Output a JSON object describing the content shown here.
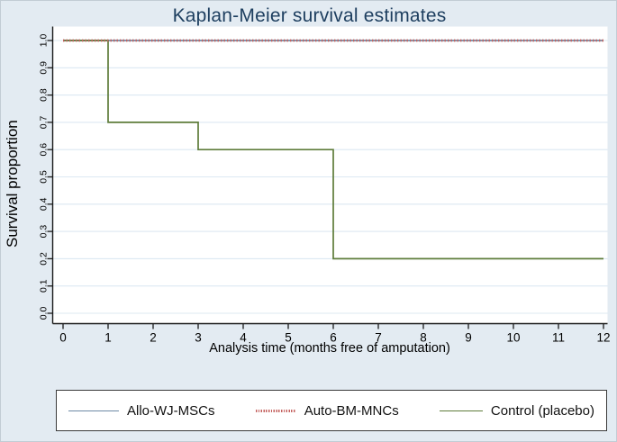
{
  "title": "Kaplan-Meier survival estimates",
  "axes": {
    "y_label": "Survival proportion",
    "x_label": "Analysis time (months free of amputation)"
  },
  "colors": {
    "background": "#e3ebf2",
    "plot_bg": "#ffffff",
    "gridline": "#dce8f2",
    "axis": "#1a1a1a",
    "title": "#1d3e5f",
    "blue_series": "#6d89a5",
    "red_series": "#c4625f",
    "green_series": "#5e7c3a"
  },
  "chart_data": {
    "type": "line",
    "subtype": "kaplan-meier-step",
    "title": "Kaplan-Meier survival estimates",
    "xlabel": "Analysis time (months free of amputation)",
    "ylabel": "Survival proportion",
    "xlim": [
      0,
      12
    ],
    "ylim": [
      0.0,
      1.0
    ],
    "x_ticks": [
      0,
      1,
      2,
      3,
      4,
      5,
      6,
      7,
      8,
      9,
      10,
      11,
      12
    ],
    "y_ticks": [
      0.0,
      0.1,
      0.2,
      0.3,
      0.4,
      0.5,
      0.6,
      0.7,
      0.8,
      0.9,
      1.0
    ],
    "grid": "horizontal",
    "legend_position": "bottom",
    "series": [
      {
        "name": "Allo-WJ-MSCs",
        "color": "#6d89a5",
        "style": "solid",
        "x": [
          0,
          12
        ],
        "y": [
          1.0,
          1.0
        ]
      },
      {
        "name": "Control (placebo)",
        "color": "#5e7c3a",
        "style": "solid",
        "x": [
          0,
          1,
          3,
          6,
          12
        ],
        "y": [
          1.0,
          0.7,
          0.6,
          0.2,
          0.2
        ]
      },
      {
        "name": "Auto-BM-MNCs",
        "color": "#c4625f",
        "style": "dotted",
        "x": [
          0,
          12
        ],
        "y": [
          1.0,
          1.0
        ]
      }
    ]
  },
  "legend": {
    "items": [
      {
        "label": "Allo-WJ-MSCs"
      },
      {
        "label": "Auto-BM-MNCs"
      },
      {
        "label": "Control (placebo)"
      }
    ]
  }
}
